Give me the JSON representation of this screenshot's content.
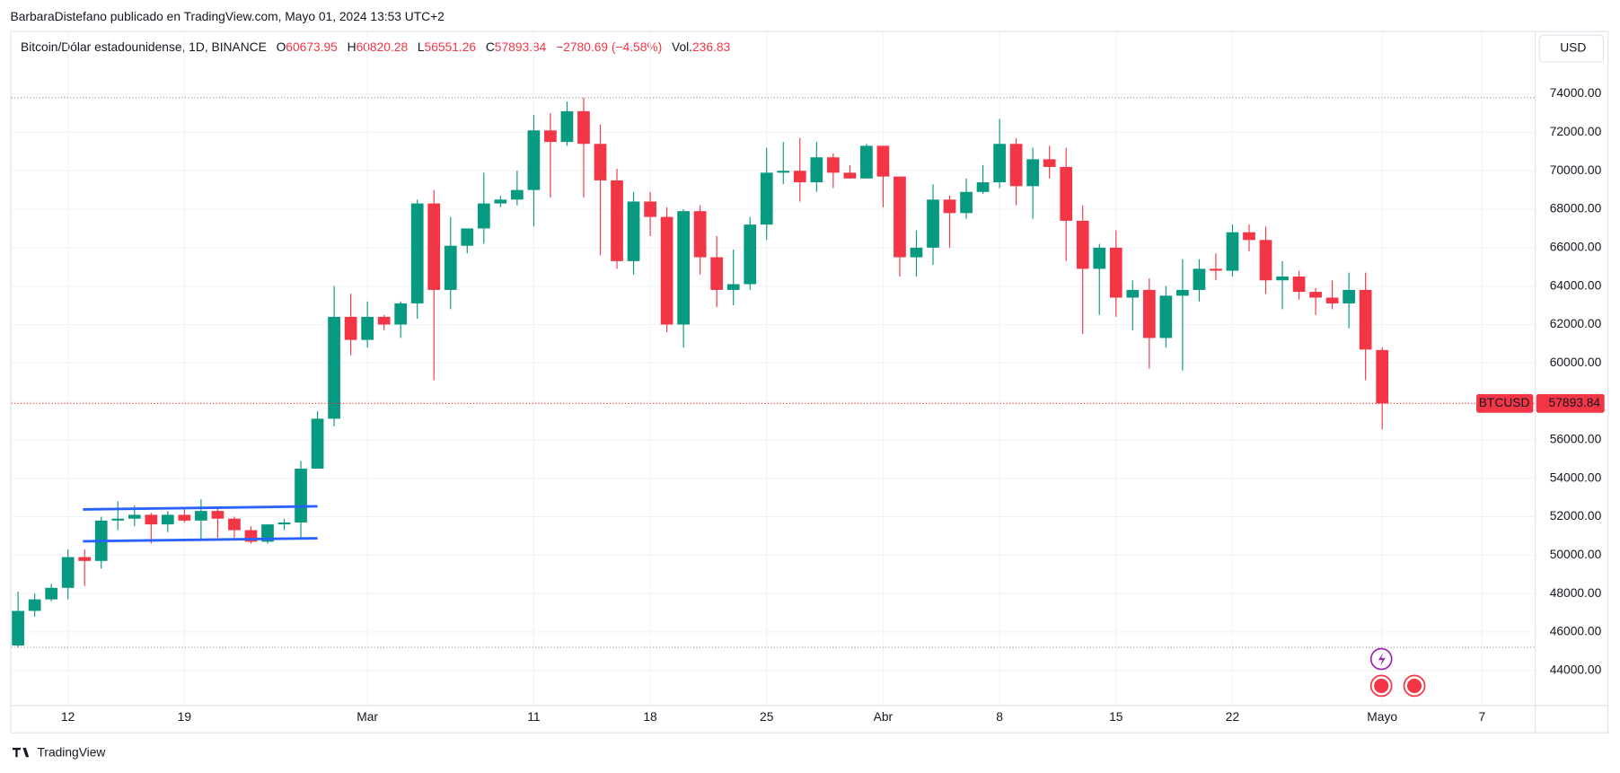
{
  "header": {
    "byline": "BarbaraDistefano publicado en TradingView.com, Mayo 01, 2024 13:53 UTC+2",
    "currency": "USD",
    "footer": "TradingView"
  },
  "chart_data": {
    "type": "candlestick",
    "title": "Bitcoin/Dólar estadounidense, 1D, BINANCE",
    "legend": {
      "open_label": "O",
      "high_label": "H",
      "low_label": "L",
      "close_label": "C",
      "change": "−2780.69 (−4.58%)",
      "volume_label": "Vol.",
      "volume": 236.83
    },
    "symbol": "BTCUSD",
    "up_color": "#089981",
    "down_color": "#f23645",
    "xlim": [
      -0.4,
      91.2
    ],
    "xticks": [
      {
        "value": 3,
        "label": "12"
      },
      {
        "value": 10,
        "label": "19"
      },
      {
        "value": 21,
        "label": "Mar"
      },
      {
        "value": 31,
        "label": "11"
      },
      {
        "value": 38,
        "label": "18"
      },
      {
        "value": 45,
        "label": "25"
      },
      {
        "value": 52,
        "label": "Abr"
      },
      {
        "value": 59,
        "label": "8"
      },
      {
        "value": 66,
        "label": "15"
      },
      {
        "value": 73,
        "label": "22"
      },
      {
        "value": 82,
        "label": "Mayo"
      },
      {
        "value": 88,
        "label": "7"
      }
    ],
    "ylim": [
      42180,
      77220
    ],
    "yticks": [
      {
        "value": 44000,
        "label": "44000.00"
      },
      {
        "value": 46000,
        "label": "46000.00"
      },
      {
        "value": 48000,
        "label": "48000.00"
      },
      {
        "value": 50000,
        "label": "50000.00"
      },
      {
        "value": 52000,
        "label": "52000.00"
      },
      {
        "value": 54000,
        "label": "54000.00"
      },
      {
        "value": 56000,
        "label": "56000.00"
      },
      {
        "value": 58000,
        "label": "58000.00"
      },
      {
        "value": 60000,
        "label": "60000.00"
      },
      {
        "value": 62000,
        "label": "62000.00"
      },
      {
        "value": 64000,
        "label": "64000.00"
      },
      {
        "value": 66000,
        "label": "66000.00"
      },
      {
        "value": 68000,
        "label": "68000.00"
      },
      {
        "value": 70000,
        "label": "70000.00"
      },
      {
        "value": 72000,
        "label": "72000.00"
      },
      {
        "value": 74000,
        "label": "74000.00"
      }
    ],
    "grid": true,
    "open": [
      45300,
      47100,
      47700,
      48300,
      49900,
      49700,
      51800,
      51900,
      52100,
      51600,
      52100,
      51800,
      52300,
      51900,
      51300,
      50700,
      51600,
      51700,
      54500,
      57100,
      62400,
      61200,
      62400,
      62000,
      63100,
      68300,
      63800,
      66100,
      67000,
      68300,
      68500,
      69000,
      72100,
      71500,
      73100,
      71400,
      69500,
      65300,
      68400,
      67600,
      62000,
      67900,
      65500,
      63800,
      64100,
      67200,
      69900,
      70000,
      69400,
      70700,
      69900,
      69600,
      71300,
      69700,
      65500,
      66000,
      68500,
      67800,
      68900,
      69400,
      71400,
      69200,
      70600,
      70200,
      67400,
      64900,
      66000,
      63400,
      63800,
      61300,
      63500,
      63800,
      64900,
      64800,
      66800,
      66400,
      64300,
      64500,
      63700,
      63400,
      63100,
      63800,
      60673.95
    ],
    "high": [
      48100,
      48000,
      48500,
      50300,
      50300,
      52000,
      52800,
      52600,
      52200,
      52300,
      52400,
      52900,
      52400,
      52000,
      51500,
      51600,
      51900,
      54900,
      57500,
      64000,
      63600,
      63200,
      62500,
      63200,
      68500,
      69000,
      67600,
      67000,
      69900,
      68700,
      70000,
      72900,
      73000,
      73600,
      73800,
      72400,
      70100,
      68900,
      68900,
      68100,
      68000,
      68200,
      66600,
      65900,
      67600,
      71200,
      71500,
      71700,
      71500,
      70900,
      70300,
      71400,
      71300,
      69700,
      66900,
      69300,
      68700,
      69600,
      70300,
      72700,
      71700,
      71200,
      71300,
      71200,
      68200,
      66200,
      66900,
      64300,
      64400,
      64000,
      65400,
      65400,
      65700,
      67200,
      67200,
      67100,
      65300,
      64800,
      63900,
      64300,
      64700,
      64700,
      60820.28
    ],
    "low": [
      45200,
      46800,
      47600,
      47700,
      48400,
      49300,
      51300,
      51500,
      50600,
      51200,
      51700,
      50800,
      50900,
      50900,
      50600,
      50600,
      51300,
      50900,
      54500,
      56700,
      60400,
      60800,
      61700,
      61300,
      62300,
      59100,
      62800,
      65700,
      66200,
      68100,
      68200,
      67100,
      68600,
      71300,
      68600,
      65600,
      64900,
      64600,
      66600,
      61600,
      60800,
      64600,
      62900,
      63000,
      63800,
      66400,
      69300,
      68400,
      68900,
      69100,
      69600,
      69600,
      68100,
      64500,
      64500,
      65100,
      66000,
      67500,
      68800,
      69100,
      68200,
      67500,
      69600,
      65300,
      61500,
      62500,
      62400,
      61700,
      59700,
      60800,
      59600,
      63200,
      64300,
      64500,
      65800,
      63600,
      62800,
      63300,
      62500,
      62800,
      61800,
      59100,
      56551.26
    ],
    "close": [
      47100,
      47700,
      48300,
      49900,
      49700,
      51800,
      51900,
      52100,
      51600,
      52100,
      51800,
      52300,
      51900,
      51300,
      50700,
      51600,
      51700,
      54500,
      57100,
      62400,
      61200,
      62400,
      62000,
      63100,
      68300,
      63800,
      66100,
      67000,
      68300,
      68500,
      69000,
      72100,
      71500,
      73100,
      71400,
      69500,
      65300,
      68400,
      67600,
      62000,
      67900,
      65500,
      63800,
      64100,
      67200,
      69900,
      70000,
      69400,
      70700,
      69900,
      69600,
      71300,
      69700,
      65500,
      66000,
      68500,
      67800,
      68900,
      69400,
      71400,
      69200,
      70600,
      70200,
      67400,
      64900,
      66000,
      63400,
      63800,
      61300,
      63500,
      63800,
      64900,
      64800,
      66800,
      66400,
      64300,
      64500,
      63700,
      63400,
      63100,
      63800,
      60700,
      57893.84
    ],
    "trendlines": [
      {
        "color": "#2962ff",
        "x": [
          3.9,
          18
        ],
        "y": [
          52380,
          52540
        ]
      },
      {
        "color": "#2962ff",
        "x": [
          3.9,
          18
        ],
        "y": [
          50720,
          50880
        ]
      }
    ]
  }
}
